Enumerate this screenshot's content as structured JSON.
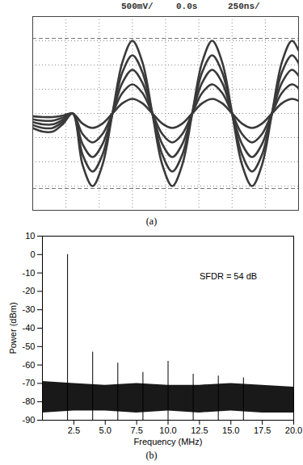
{
  "chart_data": [
    {
      "type": "line",
      "caption": "(a)",
      "header": [
        "500mV/",
        "0.0s",
        "250ns/"
      ],
      "x": [
        0,
        0.3,
        0.6,
        0.9,
        1.2,
        1.5,
        1.8,
        2.1,
        2.4,
        2.7,
        3.0,
        3.3,
        3.6,
        3.9,
        4.2,
        4.5,
        4.8,
        5.1,
        5.4,
        5.7,
        6.0,
        6.3,
        6.6,
        6.9,
        7.2,
        7.5,
        7.8,
        8.0
      ],
      "series": [
        {
          "color": "#3a3a3a",
          "values": [
            -0.6,
            -0.75,
            -0.75,
            -0.45,
            0,
            -2.12,
            -3,
            -2.12,
            0,
            2.12,
            3,
            2.12,
            0,
            -2.12,
            -3,
            -2.12,
            0,
            2.12,
            3,
            2.12,
            0,
            -2.12,
            -3,
            -2.12,
            0,
            2.12,
            3,
            2.6
          ]
        },
        {
          "color": "#3a3a3a",
          "values": [
            -0.48,
            -0.6,
            -0.6,
            -0.36,
            0,
            -1.7,
            -2.4,
            -1.7,
            0,
            1.7,
            2.4,
            1.7,
            0,
            -1.7,
            -2.4,
            -1.7,
            0,
            1.7,
            2.4,
            1.7,
            0,
            -1.7,
            -2.4,
            -1.7,
            0,
            1.7,
            2.4,
            2.08
          ]
        },
        {
          "color": "#3a3a3a",
          "values": [
            -0.36,
            -0.45,
            -0.45,
            -0.27,
            0,
            -1.27,
            -1.8,
            -1.27,
            0,
            1.27,
            1.8,
            1.27,
            0,
            -1.27,
            -1.8,
            -1.27,
            0,
            1.27,
            1.8,
            1.27,
            0,
            -1.27,
            -1.8,
            -1.27,
            0,
            1.27,
            1.8,
            1.56
          ]
        },
        {
          "color": "#3a3a3a",
          "values": [
            -0.24,
            -0.3,
            -0.3,
            -0.18,
            0,
            -0.85,
            -1.2,
            -0.85,
            0,
            0.85,
            1.2,
            0.85,
            0,
            -0.85,
            -1.2,
            -0.85,
            0,
            0.85,
            1.2,
            0.85,
            0,
            -0.85,
            -1.2,
            -0.85,
            0,
            0.85,
            1.2,
            1.04
          ]
        },
        {
          "color": "#3a3a3a",
          "values": [
            -0.12,
            -0.15,
            -0.15,
            -0.09,
            0,
            -0.42,
            -0.6,
            -0.42,
            0,
            0.42,
            0.6,
            0.42,
            0,
            -0.42,
            -0.6,
            -0.42,
            0,
            0.42,
            0.6,
            0.42,
            0,
            -0.42,
            -0.6,
            -0.42,
            0,
            0.42,
            0.6,
            0.52
          ]
        }
      ],
      "cursor_levels": [
        3.1,
        -3.1
      ],
      "xlim": [
        0,
        8
      ],
      "xticks": [
        0,
        1,
        2,
        3,
        4,
        5,
        6,
        7,
        8
      ],
      "ylim": [
        -4,
        4
      ],
      "yticks": [
        -4,
        -3,
        -2,
        -1,
        0,
        1,
        2,
        3,
        4
      ],
      "grid": true,
      "tick_labels": false
    },
    {
      "type": "spectrum",
      "caption": "(b)",
      "x_label": "Frequency (MHz)",
      "y_label": "Power (dBm)",
      "annotation": {
        "text": "SFDR = 54 dB",
        "x": 12.5,
        "y": -12
      },
      "peaks": {
        "x": [
          2,
          4,
          6,
          8,
          10,
          12,
          14,
          16
        ],
        "values": [
          0,
          -53,
          -59,
          -64,
          -58,
          -65,
          -66,
          -67
        ]
      },
      "noise_band": {
        "x": [
          0,
          2.5,
          5,
          7.5,
          10,
          12.5,
          15,
          17.5,
          20
        ],
        "low": [
          -86,
          -85,
          -85,
          -86,
          -85,
          -86,
          -85,
          -86,
          -86
        ],
        "high": [
          -69,
          -70,
          -71,
          -70,
          -71,
          -71,
          -70,
          -71,
          -72
        ]
      },
      "color": "#000000",
      "xlim": [
        0,
        20
      ],
      "xticks": [
        2.5,
        {
          "value": 5,
          "label": "5.0"
        },
        7.5,
        {
          "value": 10,
          "label": "10.0"
        },
        12.5,
        {
          "value": 15,
          "label": "15.0"
        },
        17.5,
        {
          "value": 20,
          "label": "20.0"
        }
      ],
      "ylim": [
        -90,
        10
      ],
      "yticks": [
        -90,
        -80,
        -70,
        -60,
        -50,
        -40,
        -30,
        -20,
        -10,
        0,
        10
      ],
      "grid": false
    }
  ]
}
